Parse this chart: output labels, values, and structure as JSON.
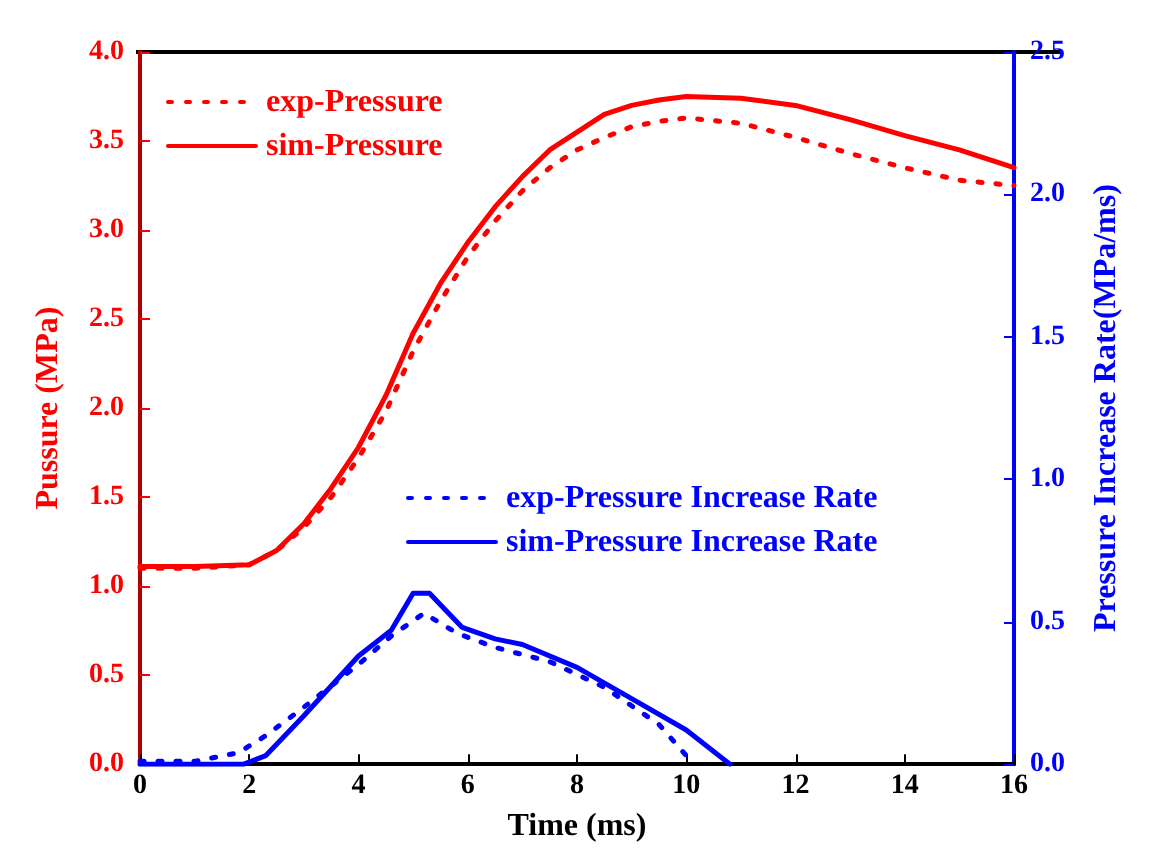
{
  "chart_data": {
    "type": "line",
    "xlabel": "Time (ms)",
    "ylabel": "Pussure (MPa)",
    "y2label": "Pressure Increase Rate(MPa/ms)",
    "xlim": [
      0,
      16
    ],
    "xticks": [
      0,
      2,
      4,
      6,
      8,
      10,
      12,
      14,
      16
    ],
    "ylim": [
      0,
      4
    ],
    "yticks": [
      {
        "value": 0,
        "label": "0.0"
      },
      0.5,
      {
        "value": 1,
        "label": "1.0"
      },
      1.5,
      {
        "value": 2,
        "label": "2.0"
      },
      2.5,
      {
        "value": 3,
        "label": "3.0"
      },
      3.5,
      {
        "value": 4,
        "label": "4.0"
      }
    ],
    "y2lim": [
      0,
      2.5
    ],
    "y2ticks": [
      {
        "value": 0,
        "label": "0.0"
      },
      0.5,
      {
        "value": 1,
        "label": "1.0"
      },
      1.5,
      {
        "value": 2,
        "label": "2.0"
      },
      2.5
    ],
    "legend": "top left",
    "marker": "none",
    "grid": false,
    "series": [
      {
        "name": "exp-Pressure",
        "color": "#ff0000",
        "line_style": "dotted",
        "x": [
          0,
          1,
          2,
          2.5,
          3,
          3.5,
          4,
          4.5,
          5,
          5.5,
          6,
          6.5,
          7,
          7.5,
          8,
          8.5,
          9,
          9.5,
          10,
          11,
          12,
          13,
          14,
          15,
          16
        ],
        "values": [
          1.1,
          1.1,
          1.12,
          1.2,
          1.33,
          1.5,
          1.72,
          1.98,
          2.32,
          2.6,
          2.85,
          3.05,
          3.22,
          3.35,
          3.45,
          3.52,
          3.58,
          3.61,
          3.63,
          3.6,
          3.52,
          3.43,
          3.35,
          3.28,
          3.25
        ]
      },
      {
        "name": "sim-Pressure",
        "color": "#ff0000",
        "line_style": "solid",
        "x": [
          0,
          1,
          2,
          2.5,
          3,
          3.5,
          4,
          4.5,
          5,
          5.5,
          6,
          6.5,
          7,
          7.5,
          8,
          8.5,
          9,
          9.5,
          10,
          11,
          12,
          13,
          14,
          15,
          16
        ],
        "values": [
          1.11,
          1.11,
          1.12,
          1.2,
          1.35,
          1.55,
          1.78,
          2.07,
          2.42,
          2.7,
          2.93,
          3.13,
          3.3,
          3.45,
          3.55,
          3.65,
          3.7,
          3.73,
          3.75,
          3.74,
          3.7,
          3.62,
          3.53,
          3.45,
          3.35
        ]
      },
      {
        "name": "exp-Pressure Increase Rate",
        "color": "#0000ff",
        "line_style": "dotted",
        "axis": "y2",
        "x": [
          0,
          1,
          1.8,
          2.3,
          3,
          4,
          4.6,
          5.2,
          5.8,
          6.5,
          7.5,
          8.5,
          9.5,
          10
        ],
        "values": [
          0.01,
          0.01,
          0.04,
          0.1,
          0.2,
          0.35,
          0.45,
          0.53,
          0.46,
          0.41,
          0.36,
          0.27,
          0.14,
          0.03
        ]
      },
      {
        "name": "sim-Pressure Increase Rate",
        "color": "#0000ff",
        "line_style": "solid",
        "axis": "y2",
        "x": [
          0,
          1.9,
          2.3,
          3,
          4,
          4.6,
          5,
          5.3,
          5.5,
          5.9,
          6.5,
          7,
          8,
          9,
          10,
          10.8
        ],
        "values": [
          0,
          0,
          0.03,
          0.17,
          0.38,
          0.47,
          0.6,
          0.6,
          0.56,
          0.48,
          0.44,
          0.42,
          0.34,
          0.23,
          0.12,
          0
        ]
      }
    ]
  }
}
